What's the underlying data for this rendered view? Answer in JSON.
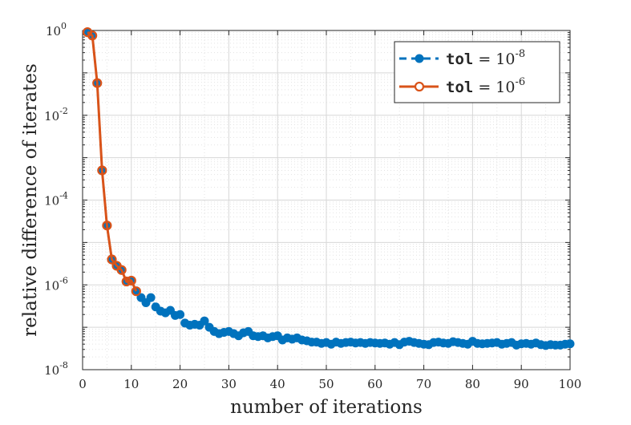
{
  "chart_data": {
    "type": "line",
    "title": "",
    "xlabel": "number of iterations",
    "ylabel": "relative difference of iterates",
    "xlim": [
      0,
      100
    ],
    "ylim_log10": [
      -8,
      0
    ],
    "yscale": "log",
    "grid": true,
    "legend_position": "top-right",
    "x_ticks": [
      "0",
      "10",
      "20",
      "30",
      "40",
      "50",
      "60",
      "70",
      "80",
      "90",
      "100"
    ],
    "x_tick_values": [
      0,
      10,
      20,
      30,
      40,
      50,
      60,
      70,
      80,
      90,
      100
    ],
    "y_ticks": [
      {
        "base": "10",
        "exp": "0",
        "value_log10": 0
      },
      {
        "base": "10",
        "exp": "-2",
        "value_log10": -2
      },
      {
        "base": "10",
        "exp": "-4",
        "value_log10": -4
      },
      {
        "base": "10",
        "exp": "-6",
        "value_log10": -6
      },
      {
        "base": "10",
        "exp": "-8",
        "value_log10": -8
      }
    ],
    "series": [
      {
        "name": "tol = 10^-8",
        "legend_code": "tol",
        "legend_eq": "= 10",
        "legend_exp": "-8",
        "color": "#0072BD",
        "style": "dashed-filled-dots",
        "x": [
          1,
          2,
          3,
          4,
          5,
          6,
          7,
          8,
          9,
          10,
          11,
          12,
          13,
          14,
          15,
          16,
          17,
          18,
          19,
          20,
          21,
          22,
          23,
          24,
          25,
          26,
          27,
          28,
          29,
          30,
          31,
          32,
          33,
          34,
          35,
          36,
          37,
          38,
          39,
          40,
          41,
          42,
          43,
          44,
          45,
          46,
          47,
          48,
          49,
          50,
          51,
          52,
          53,
          54,
          55,
          56,
          57,
          58,
          59,
          60,
          61,
          62,
          63,
          64,
          65,
          66,
          67,
          68,
          69,
          70,
          71,
          72,
          73,
          74,
          75,
          76,
          77,
          78,
          79,
          80,
          81,
          82,
          83,
          84,
          85,
          86,
          87,
          88,
          89,
          90,
          91,
          92,
          93,
          94,
          95,
          96,
          97,
          98,
          99,
          100
        ],
        "log10_y": [
          -0.04,
          -0.12,
          -1.24,
          -3.3,
          -4.6,
          -5.4,
          -5.55,
          -5.65,
          -5.92,
          -5.9,
          -6.15,
          -6.3,
          -6.42,
          -6.3,
          -6.52,
          -6.62,
          -6.66,
          -6.6,
          -6.72,
          -6.7,
          -6.9,
          -6.95,
          -6.93,
          -6.95,
          -6.85,
          -7.0,
          -7.1,
          -7.15,
          -7.12,
          -7.1,
          -7.15,
          -7.2,
          -7.13,
          -7.1,
          -7.2,
          -7.22,
          -7.2,
          -7.25,
          -7.22,
          -7.2,
          -7.3,
          -7.25,
          -7.28,
          -7.25,
          -7.3,
          -7.32,
          -7.35,
          -7.35,
          -7.38,
          -7.36,
          -7.4,
          -7.35,
          -7.38,
          -7.36,
          -7.35,
          -7.37,
          -7.36,
          -7.38,
          -7.36,
          -7.37,
          -7.38,
          -7.37,
          -7.4,
          -7.36,
          -7.41,
          -7.35,
          -7.33,
          -7.36,
          -7.38,
          -7.4,
          -7.41,
          -7.36,
          -7.35,
          -7.37,
          -7.38,
          -7.34,
          -7.36,
          -7.38,
          -7.4,
          -7.33,
          -7.38,
          -7.39,
          -7.38,
          -7.37,
          -7.36,
          -7.4,
          -7.38,
          -7.36,
          -7.42,
          -7.39,
          -7.38,
          -7.4,
          -7.37,
          -7.41,
          -7.43,
          -7.41,
          -7.42,
          -7.42,
          -7.4,
          -7.39
        ]
      },
      {
        "name": "tol = 10^-6",
        "legend_code": "tol",
        "legend_eq": "= 10",
        "legend_exp": "-6",
        "color": "#D95319",
        "style": "solid-open-circles",
        "x": [
          1,
          2,
          3,
          4,
          5,
          6,
          7,
          8,
          9,
          10,
          11
        ],
        "log10_y": [
          -0.04,
          -0.12,
          -1.24,
          -3.3,
          -4.6,
          -5.4,
          -5.55,
          -5.65,
          -5.92,
          -5.9,
          -6.15
        ]
      }
    ]
  }
}
